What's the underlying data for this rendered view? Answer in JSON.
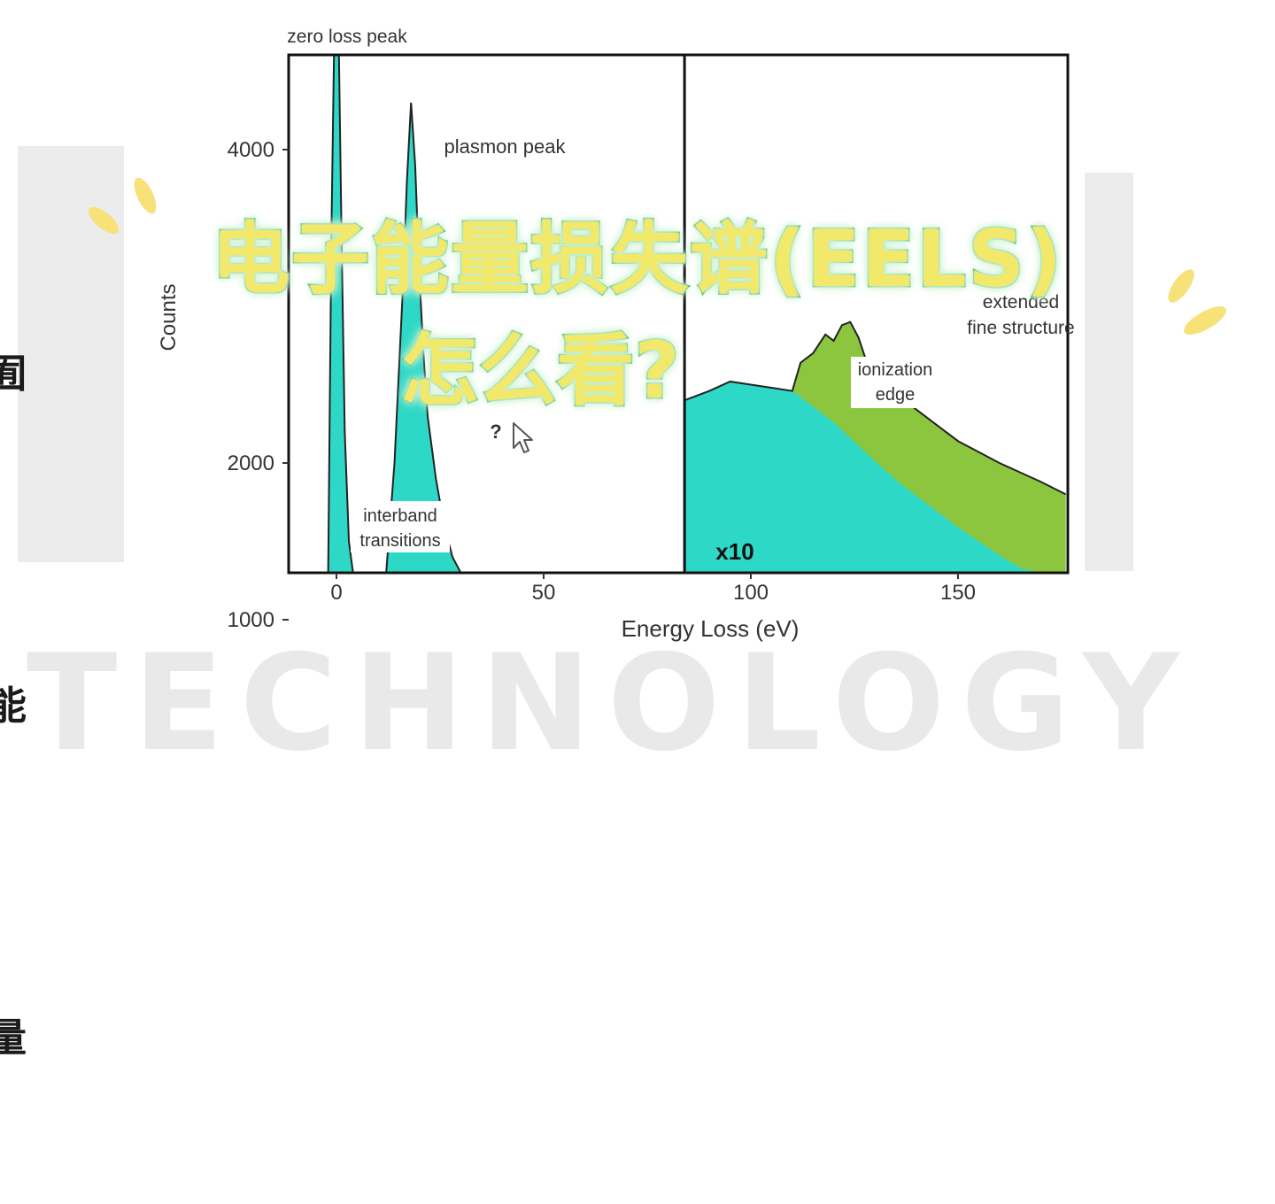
{
  "background": {
    "watermark_text": "TECHNOLOGY",
    "left_edge_chars": [
      "囿",
      "能",
      "量"
    ]
  },
  "overlay": {
    "title_line1": "电子能量损失谱(EELS)",
    "title_line2": "怎么看?",
    "fill_color": "#f2e96b",
    "outline_color": "#35a85e",
    "sparkle_color": "#f7e27a"
  },
  "chart_data": {
    "type": "area",
    "title": "",
    "xlabel": "Energy Loss (eV)",
    "ylabel": "Counts",
    "xlim": [
      -12,
      176
    ],
    "ylim": [
      0,
      4700
    ],
    "x_ticks": [
      0,
      50,
      100,
      150
    ],
    "y_ticks": [
      1000,
      2000,
      4000
    ],
    "grid": false,
    "split_at_ev": 84,
    "scale_note": "x10",
    "colors": {
      "spectrum_fill": "#2ed8c6",
      "edge_fill": "#8cc63f",
      "line": "#222222"
    },
    "low_loss_spectrum": {
      "x": [
        -12,
        -6,
        -4,
        -3,
        -2,
        -1.2,
        -0.6,
        0,
        0.6,
        1.2,
        2,
        3,
        4,
        6,
        8,
        10,
        12,
        14,
        16,
        17,
        18,
        19,
        20,
        21,
        22,
        24,
        26,
        28,
        30,
        32,
        34,
        36,
        38,
        40,
        42,
        44,
        46,
        50,
        55,
        60,
        70,
        80,
        84
      ],
      "y": [
        0,
        0,
        30,
        120,
        800,
        3500,
        4700,
        4700,
        4700,
        3500,
        2200,
        1500,
        1100,
        880,
        860,
        920,
        1250,
        2000,
        3100,
        3800,
        4300,
        3900,
        3200,
        2700,
        2300,
        1900,
        1600,
        1400,
        1250,
        1170,
        1180,
        1220,
        1200,
        1130,
        1040,
        960,
        880,
        780,
        680,
        610,
        500,
        420,
        400
      ]
    },
    "core_loss_spectrum": {
      "x": [
        84,
        90,
        95,
        100,
        105,
        110,
        112,
        115,
        118,
        120,
        122,
        124,
        126,
        128,
        130,
        133,
        136,
        140,
        145,
        150,
        155,
        160,
        165,
        170,
        176
      ],
      "total": [
        2400,
        2460,
        2520,
        2500,
        2480,
        2460,
        2640,
        2700,
        2820,
        2780,
        2880,
        2900,
        2800,
        2640,
        2540,
        2440,
        2420,
        2340,
        2240,
        2140,
        2070,
        2000,
        1940,
        1880,
        1800
      ],
      "background": [
        2400,
        2460,
        2520,
        2500,
        2480,
        2460,
        2420,
        2360,
        2300,
        2260,
        2210,
        2160,
        2110,
        2060,
        2010,
        1940,
        1870,
        1790,
        1690,
        1590,
        1500,
        1410,
        1330,
        1250,
        1150
      ]
    },
    "annotations": [
      {
        "label": "zero loss peak",
        "x": 2,
        "y": 5000
      },
      {
        "label": "plasmon peak",
        "x": 40,
        "y": 4000
      },
      {
        "label": "?",
        "x": 38,
        "y": 1450
      },
      {
        "label": "interband transitions",
        "x": 14,
        "y": 500,
        "boxed": true
      },
      {
        "label": "ionization edge",
        "x": 133,
        "y": 2000,
        "boxed": true
      },
      {
        "label": "extended fine structure",
        "x": 160,
        "y": 2700
      },
      {
        "label": "x10",
        "x": 95,
        "y": 180
      }
    ]
  }
}
